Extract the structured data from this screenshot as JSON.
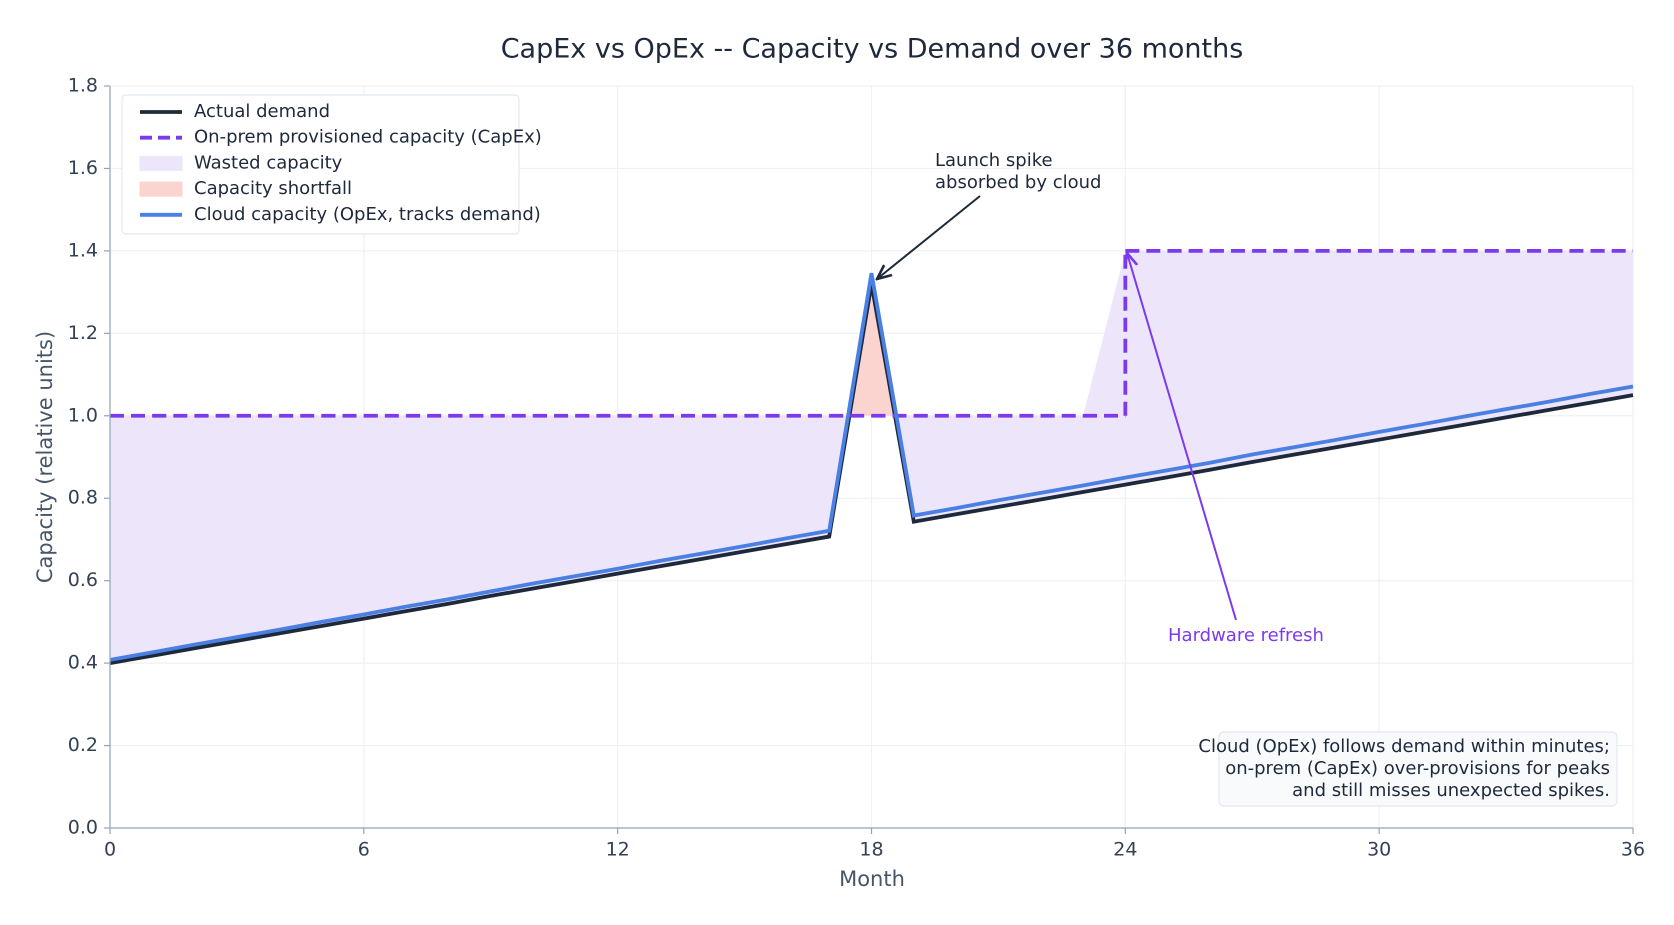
{
  "chart_data": {
    "type": "line",
    "title": "CapEx vs OpEx -- Capacity vs Demand over 36 months",
    "xlabel": "Month",
    "ylabel": "Capacity (relative units)",
    "x": [
      0,
      1,
      2,
      3,
      4,
      5,
      6,
      7,
      8,
      9,
      10,
      11,
      12,
      13,
      14,
      15,
      16,
      17,
      18,
      19,
      20,
      21,
      22,
      23,
      24,
      25,
      26,
      27,
      28,
      29,
      30,
      31,
      32,
      33,
      34,
      35,
      36
    ],
    "series": [
      {
        "name": "Actual demand",
        "color": "#1e293b",
        "style": "solid",
        "values": [
          0.4,
          0.418,
          0.436,
          0.454,
          0.472,
          0.49,
          0.508,
          0.526,
          0.544,
          0.563,
          0.581,
          0.599,
          0.617,
          0.635,
          0.653,
          0.671,
          0.689,
          0.707,
          1.32,
          0.743,
          0.761,
          0.779,
          0.797,
          0.815,
          0.833,
          0.851,
          0.869,
          0.888,
          0.906,
          0.924,
          0.942,
          0.96,
          0.978,
          0.996,
          1.014,
          1.032,
          1.05
        ]
      },
      {
        "name": "On-prem provisioned capacity (CapEx)",
        "color": "#7c3aed",
        "style": "dashed-step",
        "values": [
          1,
          1,
          1,
          1,
          1,
          1,
          1,
          1,
          1,
          1,
          1,
          1,
          1,
          1,
          1,
          1,
          1,
          1,
          1,
          1,
          1,
          1,
          1,
          1,
          1.4,
          1.4,
          1.4,
          1.4,
          1.4,
          1.4,
          1.4,
          1.4,
          1.4,
          1.4,
          1.4,
          1.4,
          1.4
        ]
      },
      {
        "name": "Cloud capacity (OpEx, tracks demand)",
        "color": "#4a7fe3",
        "style": "solid",
        "values": [
          0.408,
          0.426,
          0.445,
          0.463,
          0.481,
          0.5,
          0.518,
          0.537,
          0.555,
          0.574,
          0.593,
          0.611,
          0.629,
          0.648,
          0.666,
          0.684,
          0.703,
          0.721,
          1.346,
          0.758,
          0.776,
          0.795,
          0.813,
          0.831,
          0.85,
          0.868,
          0.886,
          0.906,
          0.924,
          0.942,
          0.961,
          0.979,
          0.998,
          1.016,
          1.034,
          1.053,
          1.071
        ]
      }
    ],
    "fills": [
      {
        "name": "Wasted capacity",
        "color": "#ede6fb"
      },
      {
        "name": "Capacity shortfall",
        "color": "#fbd3cf"
      }
    ],
    "xlim": [
      0,
      36
    ],
    "ylim": [
      0,
      1.8
    ],
    "xticks": [
      0,
      6,
      12,
      18,
      24,
      30,
      36
    ],
    "yticks": [
      {
        "value": 0,
        "label": "0.0"
      },
      0.2,
      0.4,
      0.6,
      0.8,
      {
        "value": 1,
        "label": "1.0"
      },
      1.2,
      1.4,
      1.6,
      1.8
    ],
    "grid": true,
    "legend": "upper left",
    "annotations": [
      {
        "text": [
          "Launch spike",
          "absorbed by cloud"
        ],
        "color": "#1e293b"
      },
      {
        "text": [
          "Hardware refresh"
        ],
        "color": "#7c3aed"
      }
    ],
    "note": [
      "Cloud (OpEx) follows demand within minutes;",
      "on-prem (CapEx) over-provisions for peaks",
      "and still misses unexpected spikes."
    ]
  }
}
